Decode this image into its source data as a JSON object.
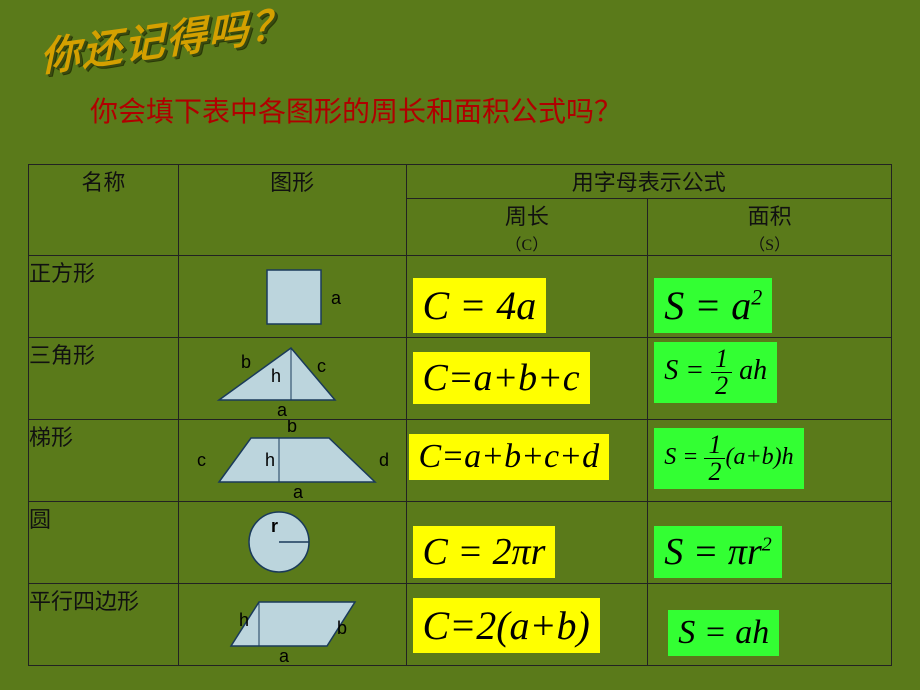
{
  "banner": "你还记得吗？",
  "subtitle": "你会填下表中各图形的周长和面积公式吗？",
  "headers": {
    "name": "名称",
    "shape": "图形",
    "formula_header": "用字母表示公式",
    "perim": "周长",
    "perim_sym": "（C）",
    "area": "面积",
    "area_sym": "（S）"
  },
  "rows": {
    "square": {
      "name": "正方形",
      "C": "C = 4a",
      "S": "S = a²"
    },
    "triangle": {
      "name": "三角形",
      "C": "C=a+b+c",
      "S_html": "<i>S</i> = <span class='frac'><span class='n'>1</span><span class='d'>2</span></span> <i>ah</i>"
    },
    "trapez": {
      "name": "梯形",
      "C": "C=a+b+c+d",
      "S_html": "<i>S</i> = <span class='frac'><span class='n'>1</span><span class='d'>2</span></span>(<i>a</i>+<i>b</i>)<i>h</i>"
    },
    "circle": {
      "name": "圆",
      "C": "C = 2πr",
      "S": "S = πr²"
    },
    "para": {
      "name": "平行四边形",
      "C": "C=2(a+b)",
      "S": "S = ah"
    }
  },
  "colors": {
    "shape_fill": "#bcd5dd",
    "shape_stroke": "#1a3a5a",
    "yellow": "#ffff00",
    "green": "#33ff33"
  }
}
